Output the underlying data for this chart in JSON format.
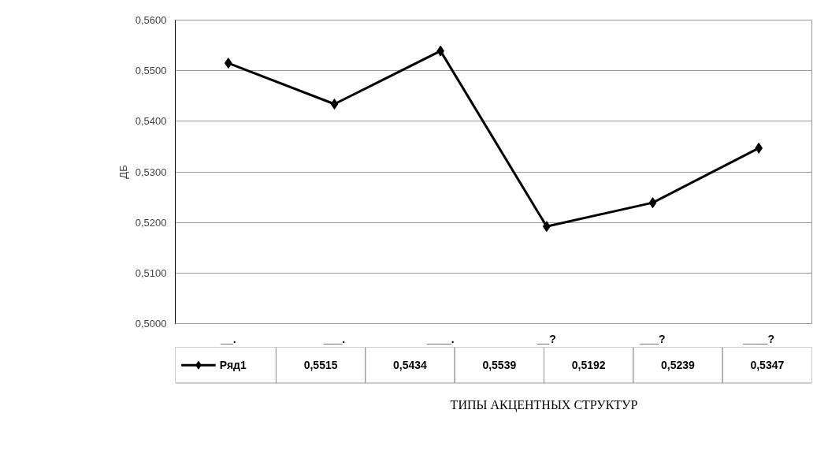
{
  "chart_data": {
    "type": "line",
    "annotations": [
      "ТИПЫ АКЦЕНТНЫХ СТРУКТУР"
    ],
    "ylabel": "ДБ",
    "categories": [
      "__.",
      "___.",
      "____.",
      "__?",
      "___?",
      "____?"
    ],
    "series": [
      {
        "name": "Ряд1",
        "color": "#000000",
        "values": [
          0.5515,
          0.5434,
          0.5539,
          0.5192,
          0.5239,
          0.5347
        ]
      }
    ],
    "ylim": [
      0.5,
      0.56
    ],
    "yticks": [
      {
        "value": 0.5,
        "label": "0,5000"
      },
      {
        "value": 0.51,
        "label": "0,5100"
      },
      {
        "value": 0.52,
        "label": "0,5200"
      },
      {
        "value": 0.53,
        "label": "0,5300"
      },
      {
        "value": 0.54,
        "label": "0,5400"
      },
      {
        "value": 0.55,
        "label": "0,5500"
      },
      {
        "value": 0.56,
        "label": "0,5600"
      }
    ],
    "value_labels": [
      "0,5515",
      "0,5434",
      "0,5539",
      "0,5192",
      "0,5239",
      "0,5347"
    ],
    "grid": "y",
    "legend": "bottom",
    "marker": "diamond",
    "line_style": "solid"
  }
}
